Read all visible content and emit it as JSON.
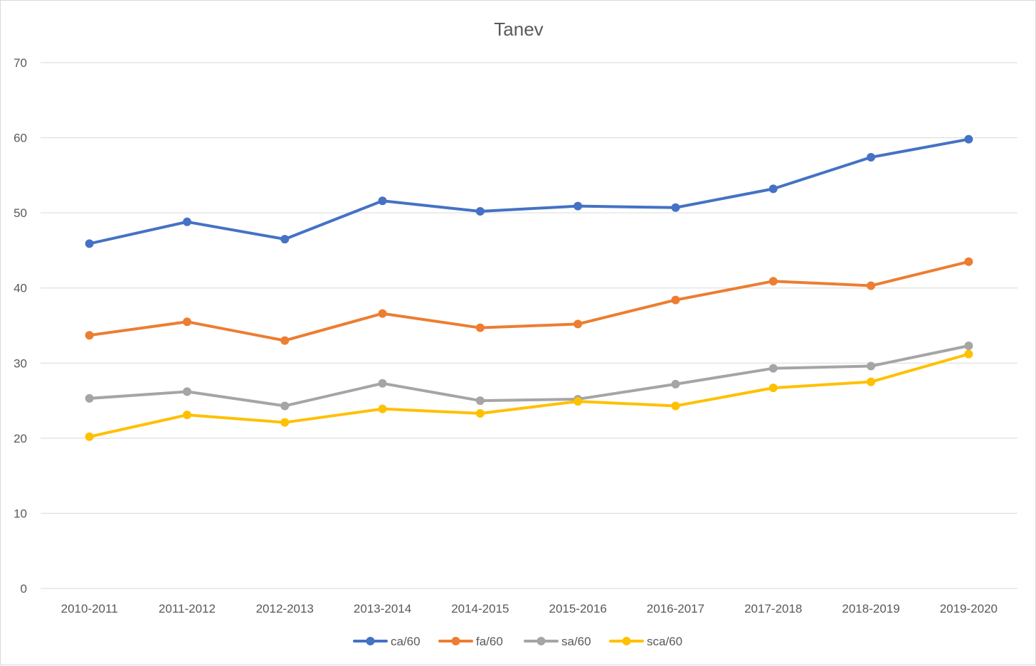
{
  "chart_data": {
    "type": "line",
    "title": "Tanev",
    "xlabel": "",
    "ylabel": "",
    "categories": [
      "2010-2011",
      "2011-2012",
      "2012-2013",
      "2013-2014",
      "2014-2015",
      "2015-2016",
      "2016-2017",
      "2017-2018",
      "2018-2019",
      "2019-2020"
    ],
    "ylim": [
      0,
      70
    ],
    "yticks": [
      0,
      10,
      20,
      30,
      40,
      50,
      60,
      70
    ],
    "grid": true,
    "legend_position": "bottom",
    "series": [
      {
        "name": "ca/60",
        "color": "#4472c4",
        "values": [
          45.9,
          48.8,
          46.5,
          51.6,
          50.2,
          50.9,
          50.7,
          53.2,
          57.4,
          59.8
        ]
      },
      {
        "name": "fa/60",
        "color": "#ed7d31",
        "values": [
          33.7,
          35.5,
          33.0,
          36.6,
          34.7,
          35.2,
          38.4,
          40.9,
          40.3,
          43.5
        ]
      },
      {
        "name": "sa/60",
        "color": "#a5a5a5",
        "values": [
          25.3,
          26.2,
          24.3,
          27.3,
          25.0,
          25.2,
          27.2,
          29.3,
          29.6,
          32.3
        ]
      },
      {
        "name": "sca/60",
        "color": "#ffc000",
        "values": [
          20.2,
          23.1,
          22.1,
          23.9,
          23.3,
          24.9,
          24.3,
          26.7,
          27.5,
          31.2
        ]
      }
    ]
  }
}
